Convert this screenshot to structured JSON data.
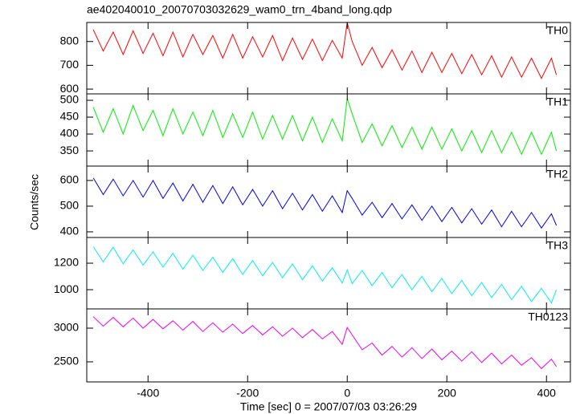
{
  "chart_data": [
    {
      "type": "line",
      "title": "ae402040010_20070703032629_wam0_trn_4band_long.qdp",
      "label": "TH0",
      "color": "#ff0000",
      "x": [
        -510,
        -490,
        -470,
        -450,
        -430,
        -410,
        -390,
        -370,
        -350,
        -330,
        -310,
        -290,
        -270,
        -250,
        -230,
        -210,
        -190,
        -170,
        -150,
        -130,
        -110,
        -90,
        -70,
        -50,
        -30,
        -10,
        0,
        10,
        30,
        50,
        70,
        90,
        110,
        130,
        150,
        170,
        190,
        210,
        230,
        250,
        270,
        290,
        310,
        330,
        350,
        370,
        390,
        410,
        420
      ],
      "values": [
        850,
        760,
        840,
        745,
        845,
        750,
        835,
        740,
        840,
        735,
        830,
        745,
        825,
        730,
        830,
        730,
        820,
        735,
        825,
        720,
        815,
        725,
        810,
        720,
        805,
        730,
        880,
        800,
        700,
        775,
        690,
        765,
        680,
        760,
        670,
        755,
        670,
        750,
        665,
        745,
        660,
        740,
        650,
        735,
        650,
        730,
        645,
        730,
        660
      ],
      "xlim": [
        -523,
        448
      ],
      "ylim": [
        580,
        880
      ],
      "yticks": [
        600,
        700,
        800
      ]
    },
    {
      "type": "line",
      "label": "TH1",
      "color": "#00ee00",
      "x": [
        -510,
        -490,
        -470,
        -450,
        -430,
        -410,
        -390,
        -370,
        -350,
        -330,
        -310,
        -290,
        -270,
        -250,
        -230,
        -210,
        -190,
        -170,
        -150,
        -130,
        -110,
        -90,
        -70,
        -50,
        -30,
        -10,
        0,
        10,
        30,
        50,
        70,
        90,
        110,
        130,
        150,
        170,
        190,
        210,
        230,
        250,
        270,
        290,
        310,
        330,
        350,
        370,
        390,
        410,
        420
      ],
      "values": [
        480,
        405,
        475,
        400,
        485,
        410,
        470,
        395,
        475,
        400,
        465,
        395,
        470,
        390,
        460,
        390,
        465,
        385,
        455,
        385,
        455,
        380,
        450,
        375,
        445,
        380,
        505,
        460,
        375,
        430,
        365,
        425,
        360,
        420,
        355,
        420,
        355,
        415,
        350,
        410,
        345,
        410,
        345,
        405,
        340,
        405,
        340,
        405,
        350
      ],
      "xlim": [
        -523,
        448
      ],
      "ylim": [
        305,
        519
      ],
      "yticks": [
        350,
        400,
        450,
        500
      ]
    },
    {
      "type": "line",
      "label": "TH2",
      "color": "#0000ee",
      "ylabel": "Counts/sec",
      "x": [
        -510,
        -490,
        -470,
        -450,
        -430,
        -410,
        -390,
        -370,
        -350,
        -330,
        -310,
        -290,
        -270,
        -250,
        -230,
        -210,
        -190,
        -170,
        -150,
        -130,
        -110,
        -90,
        -70,
        -50,
        -30,
        -10,
        0,
        10,
        30,
        50,
        70,
        90,
        110,
        130,
        150,
        170,
        190,
        210,
        230,
        250,
        270,
        290,
        310,
        330,
        350,
        370,
        390,
        410,
        420
      ],
      "values": [
        610,
        545,
        605,
        540,
        600,
        535,
        600,
        530,
        590,
        520,
        585,
        515,
        580,
        510,
        575,
        505,
        565,
        500,
        560,
        490,
        550,
        485,
        545,
        480,
        540,
        475,
        560,
        530,
        465,
        515,
        455,
        510,
        450,
        505,
        445,
        500,
        440,
        495,
        435,
        490,
        430,
        485,
        420,
        480,
        420,
        475,
        415,
        470,
        425
      ],
      "xlim": [
        -523,
        448
      ],
      "ylim": [
        378,
        656
      ],
      "yticks": [
        400,
        500,
        600
      ]
    },
    {
      "type": "line",
      "label": "TH3",
      "color": "#00eeee",
      "x": [
        -510,
        -490,
        -470,
        -450,
        -430,
        -410,
        -390,
        -370,
        -350,
        -330,
        -310,
        -290,
        -270,
        -250,
        -230,
        -210,
        -190,
        -170,
        -150,
        -130,
        -110,
        -90,
        -70,
        -50,
        -30,
        -10,
        0,
        10,
        30,
        50,
        70,
        90,
        110,
        130,
        150,
        170,
        190,
        210,
        230,
        250,
        270,
        290,
        310,
        330,
        350,
        370,
        390,
        410,
        420
      ],
      "values": [
        1325,
        1210,
        1320,
        1195,
        1300,
        1185,
        1285,
        1170,
        1275,
        1155,
        1260,
        1145,
        1245,
        1130,
        1235,
        1115,
        1220,
        1105,
        1205,
        1090,
        1195,
        1075,
        1180,
        1065,
        1165,
        1050,
        1150,
        1045,
        1145,
        1030,
        1130,
        1015,
        1115,
        1000,
        1100,
        985,
        1085,
        970,
        1070,
        955,
        1055,
        940,
        1040,
        925,
        1025,
        910,
        1010,
        900,
        1000
      ],
      "xlim": [
        -523,
        448
      ],
      "ylim": [
        855,
        1394
      ],
      "yticks": [
        1000,
        1200
      ]
    },
    {
      "type": "line",
      "label": "TH0123",
      "color": "#ee00ee",
      "xlabel": "Time [sec] 0 = 2007/07/03 03:26:29",
      "x": [
        -510,
        -490,
        -470,
        -450,
        -430,
        -410,
        -390,
        -370,
        -350,
        -330,
        -310,
        -290,
        -270,
        -250,
        -230,
        -210,
        -190,
        -170,
        -150,
        -130,
        -110,
        -90,
        -70,
        -50,
        -30,
        -10,
        0,
        10,
        30,
        50,
        70,
        90,
        110,
        130,
        150,
        170,
        190,
        210,
        230,
        250,
        270,
        290,
        310,
        330,
        350,
        370,
        390,
        410,
        420
      ],
      "values": [
        3170,
        3030,
        3160,
        3020,
        3150,
        3000,
        3130,
        2990,
        3110,
        2970,
        3100,
        2950,
        3080,
        2940,
        3060,
        2920,
        3040,
        2900,
        3020,
        2880,
        3000,
        2860,
        2980,
        2840,
        2950,
        2760,
        3010,
        2900,
        2680,
        2780,
        2600,
        2730,
        2570,
        2710,
        2550,
        2690,
        2530,
        2660,
        2510,
        2650,
        2490,
        2630,
        2470,
        2600,
        2450,
        2560,
        2400,
        2540,
        2430
      ],
      "xlim": [
        -523,
        448
      ],
      "ylim": [
        2202,
        3286
      ],
      "yticks": [
        2500,
        3000
      ],
      "xticks": [
        -400,
        -200,
        0,
        200,
        400
      ]
    }
  ]
}
